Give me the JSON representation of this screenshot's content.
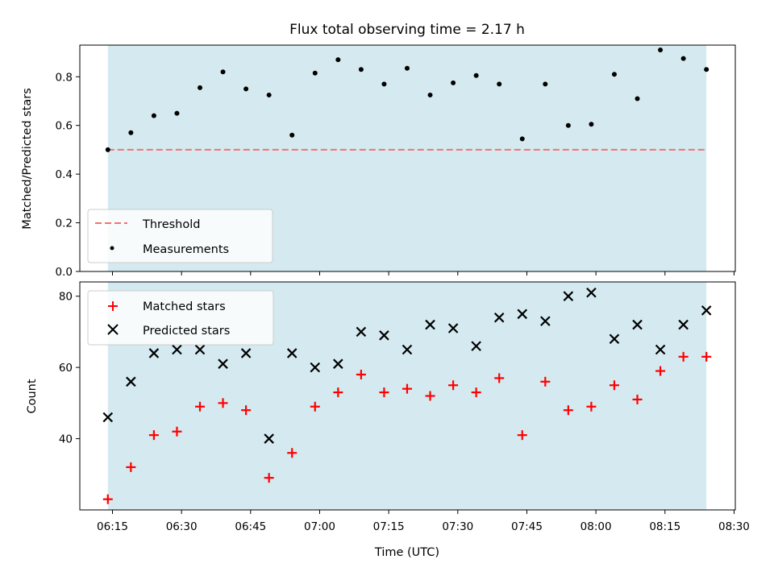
{
  "chart_data": [
    {
      "type": "scatter",
      "title": "Flux total observing time = 2.17 h",
      "xlabel": "",
      "ylabel": "Matched/Predicted stars",
      "ylim": [
        0.0,
        0.93
      ],
      "yticks": [
        0.0,
        0.2,
        0.4,
        0.6,
        0.8
      ],
      "ytick_labels": [
        "0.0",
        "0.2",
        "0.4",
        "0.6",
        "0.8"
      ],
      "x_unit": "time (UTC)",
      "threshold": {
        "name": "Threshold",
        "value": 0.5,
        "style": "dashed",
        "color": "#f47171"
      },
      "shaded_span": {
        "from": "06:14",
        "to": "08:24",
        "color": "#d4eaf0"
      },
      "legend": {
        "position": "lower-left",
        "entries": [
          "Threshold",
          "Measurements"
        ]
      },
      "series": [
        {
          "name": "Measurements",
          "marker": "dot",
          "color": "#000000",
          "x": [
            "06:14",
            "06:19",
            "06:24",
            "06:29",
            "06:34",
            "06:39",
            "06:44",
            "06:49",
            "06:54",
            "06:59",
            "07:04",
            "07:09",
            "07:14",
            "07:19",
            "07:24",
            "07:29",
            "07:34",
            "07:39",
            "07:44",
            "07:49",
            "07:54",
            "07:59",
            "08:04",
            "08:09",
            "08:14",
            "08:19",
            "08:24"
          ],
          "values": [
            0.5,
            0.57,
            0.64,
            0.65,
            0.755,
            0.82,
            0.75,
            0.725,
            0.56,
            0.815,
            0.87,
            0.83,
            0.77,
            0.835,
            0.725,
            0.775,
            0.805,
            0.77,
            0.545,
            0.77,
            0.6,
            0.605,
            0.81,
            0.71,
            0.91,
            0.875,
            0.83
          ]
        }
      ]
    },
    {
      "type": "scatter",
      "title": "",
      "xlabel": "Time (UTC)",
      "ylabel": "Count",
      "ylim": [
        20,
        84
      ],
      "yticks": [
        40,
        60,
        80
      ],
      "ytick_labels": [
        "40",
        "60",
        "80"
      ],
      "xticks": [
        "06:15",
        "06:30",
        "06:45",
        "07:00",
        "07:15",
        "07:30",
        "07:45",
        "08:00",
        "08:15",
        "08:30"
      ],
      "shaded_span": {
        "from": "06:14",
        "to": "08:24",
        "color": "#d4eaf0"
      },
      "legend": {
        "position": "upper-left",
        "entries": [
          "Matched stars",
          "Predicted stars"
        ]
      },
      "series": [
        {
          "name": "Matched stars",
          "marker": "plus",
          "color": "#ff0000",
          "x": [
            "06:14",
            "06:19",
            "06:24",
            "06:29",
            "06:34",
            "06:39",
            "06:44",
            "06:49",
            "06:54",
            "06:59",
            "07:04",
            "07:09",
            "07:14",
            "07:19",
            "07:24",
            "07:29",
            "07:34",
            "07:39",
            "07:44",
            "07:49",
            "07:54",
            "07:59",
            "08:04",
            "08:09",
            "08:14",
            "08:19",
            "08:24"
          ],
          "values": [
            23,
            32,
            41,
            42,
            49,
            50,
            48,
            29,
            36,
            49,
            53,
            58,
            53,
            54,
            52,
            55,
            53,
            57,
            41,
            56,
            48,
            49,
            55,
            51,
            59,
            63,
            63
          ]
        },
        {
          "name": "Predicted stars",
          "marker": "x",
          "color": "#000000",
          "x": [
            "06:14",
            "06:19",
            "06:24",
            "06:29",
            "06:34",
            "06:39",
            "06:44",
            "06:49",
            "06:54",
            "06:59",
            "07:04",
            "07:09",
            "07:14",
            "07:19",
            "07:24",
            "07:29",
            "07:34",
            "07:39",
            "07:44",
            "07:49",
            "07:54",
            "07:59",
            "08:04",
            "08:09",
            "08:14",
            "08:19",
            "08:24"
          ],
          "values": [
            46,
            56,
            64,
            65,
            65,
            61,
            64,
            40,
            64,
            60,
            61,
            70,
            69,
            65,
            72,
            71,
            66,
            74,
            75,
            73,
            80,
            81,
            68,
            72,
            65,
            72,
            76
          ]
        }
      ]
    }
  ]
}
